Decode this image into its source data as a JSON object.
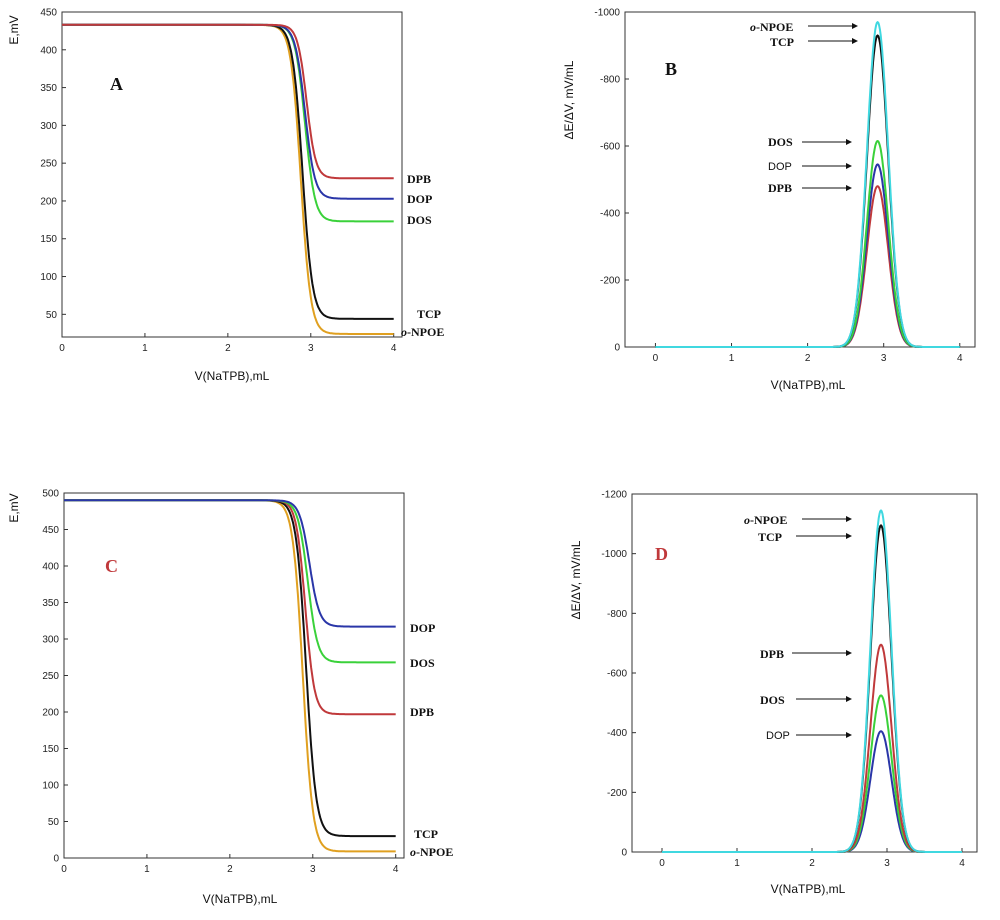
{
  "chart_data": [
    {
      "panel": "A",
      "type": "line",
      "xlabel": "V(NaTPB),mL",
      "ylabel": "E,mV",
      "xlim": [
        0,
        4.1
      ],
      "ylim": [
        20,
        450
      ],
      "xticks": [
        0,
        1,
        2,
        3,
        4
      ],
      "yticks": [
        50,
        100,
        150,
        200,
        250,
        300,
        350,
        400,
        450
      ],
      "curve": "sigmoid",
      "series": [
        {
          "name": "DPB",
          "color": "#c0393b",
          "start": 433,
          "end": 230,
          "mid": 2.95,
          "width": 0.055
        },
        {
          "name": "DOP",
          "color": "#2a36a8",
          "start": 433,
          "end": 203,
          "mid": 2.93,
          "width": 0.06
        },
        {
          "name": "DOS",
          "color": "#3ad13a",
          "start": 433,
          "end": 173,
          "mid": 2.93,
          "width": 0.06
        },
        {
          "name": "TCP",
          "color": "#111111",
          "start": 433,
          "end": 44,
          "mid": 2.9,
          "width": 0.06
        },
        {
          "name": "o-NPOE",
          "color": "#e0a020",
          "start": 433,
          "end": 24,
          "mid": 2.88,
          "width": 0.06
        }
      ]
    },
    {
      "panel": "B",
      "type": "line",
      "xlabel": "V(NaTPB),mL",
      "ylabel": "ΔE/ΔV, mV/mL",
      "xlim": [
        -0.4,
        4.2
      ],
      "ylim": [
        0,
        -1000
      ],
      "xticks": [
        0,
        1,
        2,
        3,
        4
      ],
      "yticks": [
        0,
        -200,
        -400,
        -600,
        -800,
        -1000
      ],
      "curve": "peak",
      "series": [
        {
          "name": "o-NPOE",
          "color": "#40d8e0",
          "peak": -970,
          "center": 2.92,
          "width": 0.14
        },
        {
          "name": "TCP",
          "color": "#111111",
          "peak": -930,
          "center": 2.92,
          "width": 0.14
        },
        {
          "name": "DOS",
          "color": "#3ad13a",
          "peak": -615,
          "center": 2.92,
          "width": 0.14
        },
        {
          "name": "DOP",
          "color": "#2a36a8",
          "peak": -545,
          "center": 2.92,
          "width": 0.14
        },
        {
          "name": "DPB",
          "color": "#c0393b",
          "peak": -480,
          "center": 2.92,
          "width": 0.14
        }
      ]
    },
    {
      "panel": "C",
      "type": "line",
      "xlabel": "V(NaTPB),mL",
      "ylabel": "E,mV",
      "xlim": [
        0,
        4.1
      ],
      "ylim": [
        0,
        500
      ],
      "xticks": [
        0,
        1,
        2,
        3,
        4
      ],
      "yticks": [
        0,
        50,
        100,
        150,
        200,
        250,
        300,
        350,
        400,
        450,
        500
      ],
      "curve": "sigmoid",
      "series": [
        {
          "name": "DOP",
          "color": "#2a36a8",
          "start": 490,
          "end": 317,
          "mid": 2.96,
          "width": 0.06
        },
        {
          "name": "DOS",
          "color": "#3ad13a",
          "start": 490,
          "end": 268,
          "mid": 2.94,
          "width": 0.06
        },
        {
          "name": "DPB",
          "color": "#c0393b",
          "start": 490,
          "end": 197,
          "mid": 2.91,
          "width": 0.055
        },
        {
          "name": "TCP",
          "color": "#111111",
          "start": 490,
          "end": 30,
          "mid": 2.92,
          "width": 0.06
        },
        {
          "name": "o-NPOE",
          "color": "#e0a020",
          "start": 490,
          "end": 9,
          "mid": 2.88,
          "width": 0.06
        }
      ]
    },
    {
      "panel": "D",
      "type": "line",
      "xlabel": "V(NaTPB),mL",
      "ylabel": "ΔE/ΔV, mV/mL",
      "xlim": [
        -0.4,
        4.2
      ],
      "ylim": [
        0,
        -1200
      ],
      "xticks": [
        0,
        1,
        2,
        3,
        4
      ],
      "yticks": [
        0,
        -200,
        -400,
        -600,
        -800,
        -1000,
        -1200
      ],
      "curve": "peak",
      "series": [
        {
          "name": "o-NPOE",
          "color": "#40d8e0",
          "peak": -1145,
          "center": 2.92,
          "width": 0.14
        },
        {
          "name": "TCP",
          "color": "#111111",
          "peak": -1095,
          "center": 2.92,
          "width": 0.14
        },
        {
          "name": "DPB",
          "color": "#c0393b",
          "peak": -695,
          "center": 2.92,
          "width": 0.14
        },
        {
          "name": "DOS",
          "color": "#3ad13a",
          "peak": -525,
          "center": 2.92,
          "width": 0.14
        },
        {
          "name": "DOP",
          "color": "#2a36a8",
          "peak": -405,
          "center": 2.92,
          "width": 0.14
        }
      ]
    }
  ],
  "panels": {
    "A": {
      "letter": "A",
      "letter_color": "#111111"
    },
    "B": {
      "letter": "B",
      "letter_color": "#111111"
    },
    "C": {
      "letter": "C",
      "letter_color": "#c0393b"
    },
    "D": {
      "letter": "D",
      "letter_color": "#c0393b"
    }
  },
  "label_text": {
    "npoe_prefix": "o",
    "npoe_suffix": "-NPOE"
  }
}
